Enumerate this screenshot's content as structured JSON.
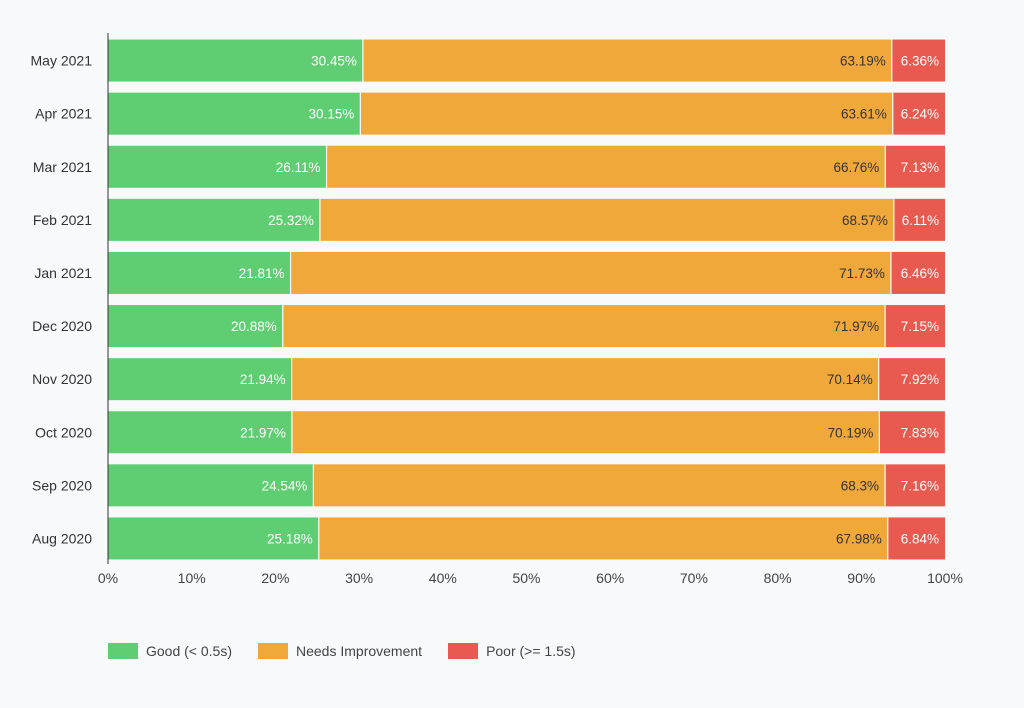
{
  "chart_data": {
    "type": "bar",
    "orientation": "horizontal",
    "stacked": true,
    "title": "",
    "xlabel": "",
    "ylabel": "",
    "xlim": [
      0,
      100
    ],
    "x_ticks": [
      "0%",
      "10%",
      "20%",
      "30%",
      "40%",
      "50%",
      "60%",
      "70%",
      "80%",
      "90%",
      "100%"
    ],
    "grid": false,
    "legend_position": "bottom-left",
    "categories": [
      "May 2021",
      "Apr 2021",
      "Mar 2021",
      "Feb 2021",
      "Jan 2021",
      "Dec 2020",
      "Nov 2020",
      "Oct 2020",
      "Sep 2020",
      "Aug 2020"
    ],
    "series": [
      {
        "name": "Good (< 0.5s)",
        "color": "#5fce73",
        "label_color": "#ffffff",
        "values": [
          30.45,
          30.15,
          26.11,
          25.32,
          21.81,
          20.88,
          21.94,
          21.97,
          24.54,
          25.18
        ],
        "labels": [
          "30.45%",
          "30.15%",
          "26.11%",
          "25.32%",
          "21.81%",
          "20.88%",
          "21.94%",
          "21.97%",
          "24.54%",
          "25.18%"
        ]
      },
      {
        "name": "Needs Improvement",
        "color": "#f0a83a",
        "label_color": "#333333",
        "values": [
          63.19,
          63.61,
          66.76,
          68.57,
          71.73,
          71.97,
          70.14,
          70.19,
          68.3,
          67.98
        ],
        "labels": [
          "63.19%",
          "63.61%",
          "66.76%",
          "68.57%",
          "71.73%",
          "71.97%",
          "70.14%",
          "70.19%",
          "68.3%",
          "67.98%"
        ]
      },
      {
        "name": "Poor (>= 1.5s)",
        "color": "#e85a4f",
        "label_color": "#ffffff",
        "values": [
          6.36,
          6.24,
          7.13,
          6.11,
          6.46,
          7.15,
          7.92,
          7.83,
          7.16,
          6.84
        ],
        "labels": [
          "6.36%",
          "6.24%",
          "7.13%",
          "6.11%",
          "6.46%",
          "7.15%",
          "7.92%",
          "7.83%",
          "7.16%",
          "6.84%"
        ]
      }
    ]
  }
}
